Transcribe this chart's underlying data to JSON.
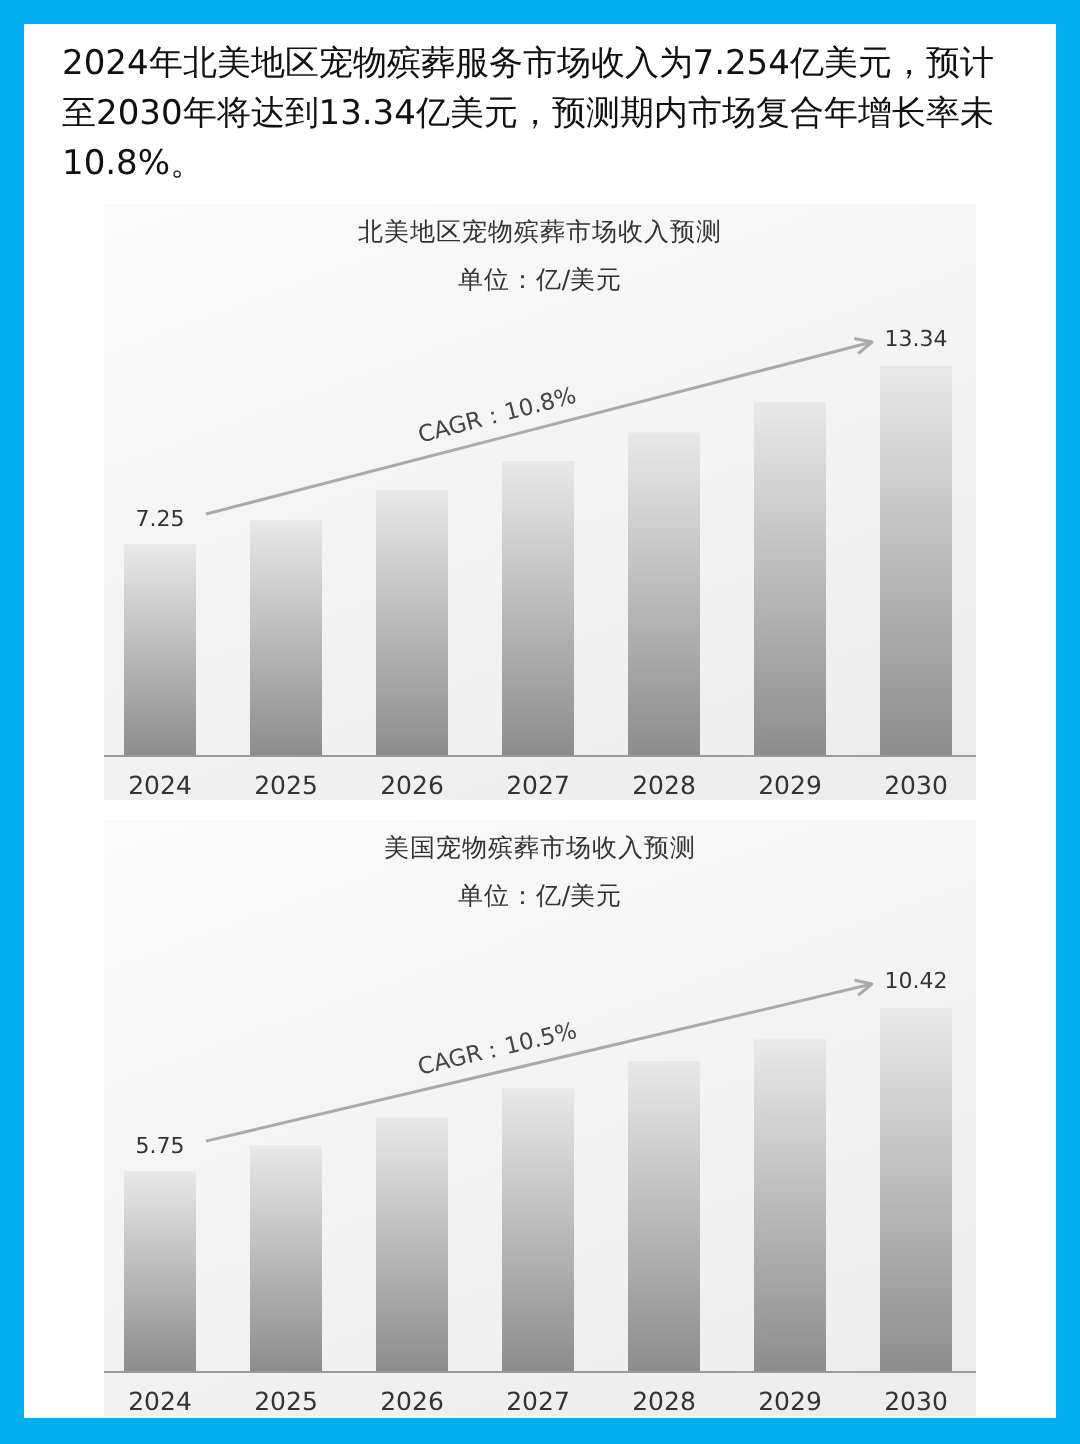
{
  "chart_data": [
    {
      "type": "bar",
      "title": "北美地区宠物殡葬市场收入预测",
      "subtitle": "单位：亿/美元",
      "annotations": [
        "2024年北美地区宠物殡葬服务市场收入为7.254亿美元，预计至2030年将达到13.34亿美元，预测期内市场复合年增长率未10.8%。",
        "CAGR：10.8%"
      ],
      "categories": [
        "2024",
        "2025",
        "2026",
        "2027",
        "2028",
        "2029",
        "2030"
      ],
      "values": [
        7.25,
        8.07,
        9.1,
        10.09,
        11.07,
        12.1,
        13.34
      ],
      "value_labels": [
        "7.25",
        null,
        null,
        null,
        null,
        null,
        "13.34"
      ],
      "color": "#8c8c8c"
    },
    {
      "type": "bar",
      "title": "美国宠物殡葬市场收入预测",
      "subtitle": "单位：亿/美元",
      "annotations": [
        "CAGR：10.5%"
      ],
      "categories": [
        "2024",
        "2025",
        "2026",
        "2027",
        "2028",
        "2029",
        "2030"
      ],
      "values": [
        5.75,
        6.49,
        7.29,
        8.12,
        8.9,
        9.52,
        10.42
      ],
      "value_labels": [
        "5.75",
        null,
        null,
        null,
        null,
        null,
        "10.42"
      ],
      "color": "#8c8c8c"
    }
  ]
}
